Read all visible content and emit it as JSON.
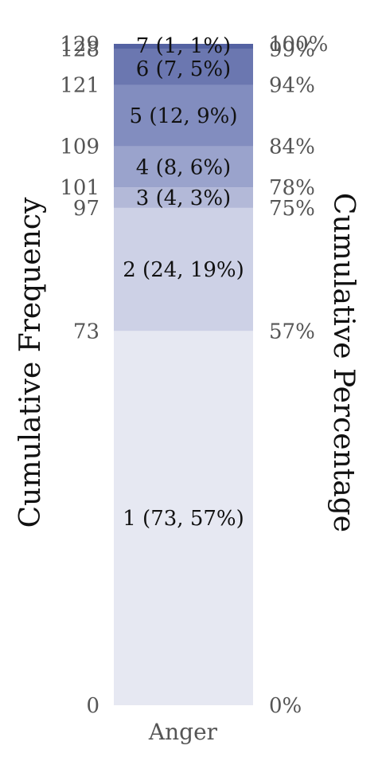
{
  "chart_data": {
    "type": "bar",
    "stacked": true,
    "category": "Anger",
    "total": 129,
    "left_axis_label": "Cumulative Frequency",
    "right_axis_label": "Cumulative Percentage",
    "segments": [
      {
        "level": 1,
        "count": 73,
        "label": "1 (73, 57%)",
        "cum_count": "73",
        "cum_pct": "57%",
        "color": "#e6e8f2"
      },
      {
        "level": 2,
        "count": 24,
        "label": "2 (24, 19%)",
        "cum_count": "97",
        "cum_pct": "75%",
        "color": "#cdd1e6"
      },
      {
        "level": 3,
        "count": 4,
        "label": "3 (4, 3%)",
        "cum_count": "101",
        "cum_pct": "78%",
        "color": "#b3b9d8"
      },
      {
        "level": 4,
        "count": 8,
        "label": "4 (8, 6%)",
        "cum_count": "109",
        "cum_pct": "84%",
        "color": "#9aa3cc"
      },
      {
        "level": 5,
        "count": 12,
        "label": "5 (12, 9%)",
        "cum_count": "121",
        "cum_pct": "94%",
        "color": "#828dbf"
      },
      {
        "level": 6,
        "count": 7,
        "label": "6 (7, 5%)",
        "cum_count": "128",
        "cum_pct": "99%",
        "color": "#6b77b0"
      },
      {
        "level": 7,
        "count": 1,
        "label": "7 (1, 1%)",
        "cum_count": "129",
        "cum_pct": "100%",
        "color": "#5462a2"
      }
    ],
    "base_tick": {
      "count": "0",
      "pct": "0%"
    }
  }
}
